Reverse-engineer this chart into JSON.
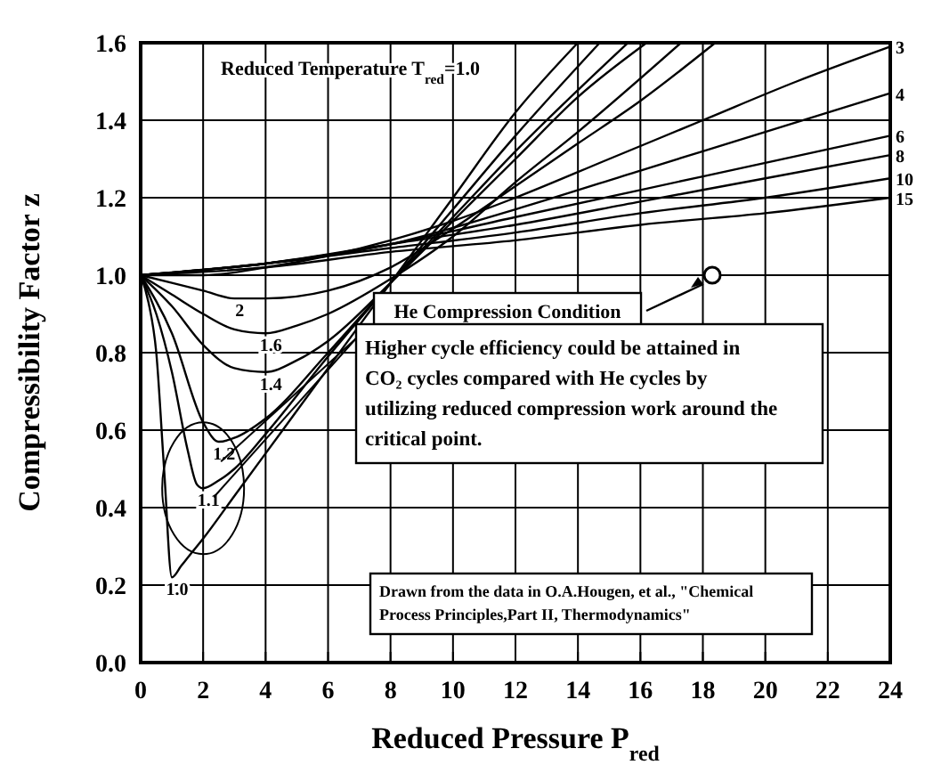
{
  "chart_data": {
    "type": "line",
    "xlabel": "Reduced Pressure  P$_{red}$",
    "ylabel": "Compressibility Factor  z",
    "xlim": [
      0,
      24
    ],
    "xticks": [
      0,
      2,
      4,
      6,
      8,
      10,
      12,
      14,
      16,
      18,
      20,
      22,
      24
    ],
    "ylim": [
      0,
      1.6
    ],
    "yticks": [
      {
        "value": 0,
        "label": "0.0"
      },
      {
        "value": 0.2,
        "label": "0.2"
      },
      {
        "value": 0.4,
        "label": "0.4"
      },
      {
        "value": 0.6,
        "label": "0.6"
      },
      {
        "value": 0.8,
        "label": "0.8"
      },
      {
        "value": 1,
        "label": "1.0"
      },
      {
        "value": 1.2,
        "label": "1.2"
      },
      {
        "value": 1.4,
        "label": "1.4"
      },
      {
        "value": 1.6,
        "label": "1.6"
      }
    ],
    "grid": true,
    "legend": false,
    "marker": "none",
    "line_style": "solid",
    "series": [
      {
        "name": "1.0",
        "color": "#000000",
        "x": [
          0,
          0.25,
          0.5,
          0.75,
          1,
          1.3,
          1.5,
          2,
          3,
          4,
          5,
          6,
          8,
          10,
          12,
          14
        ],
        "values": [
          1,
          0.93,
          0.8,
          0.5,
          0.22,
          0.25,
          0.27,
          0.32,
          0.43,
          0.54,
          0.65,
          0.76,
          0.98,
          1.2,
          1.42,
          1.6
        ]
      },
      {
        "name": "1.1",
        "color": "#000000",
        "x": [
          0,
          0.5,
          1,
          1.5,
          1.8,
          2,
          2.5,
          3,
          4,
          6,
          8,
          10,
          12,
          14.7
        ],
        "values": [
          1,
          0.9,
          0.75,
          0.55,
          0.46,
          0.45,
          0.47,
          0.5,
          0.59,
          0.79,
          0.98,
          1.17,
          1.36,
          1.6
        ]
      },
      {
        "name": "1.2",
        "color": "#000000",
        "x": [
          0,
          1,
          2,
          2.5,
          3,
          4,
          6,
          8,
          10,
          12,
          15.6
        ],
        "values": [
          1,
          0.85,
          0.62,
          0.57,
          0.58,
          0.63,
          0.8,
          0.98,
          1.15,
          1.32,
          1.6
        ]
      },
      {
        "name": "1.4",
        "color": "#000000",
        "x": [
          0,
          1,
          2,
          3,
          4,
          5,
          6,
          8,
          10,
          12,
          14,
          16.2
        ],
        "values": [
          1,
          0.92,
          0.82,
          0.76,
          0.75,
          0.78,
          0.83,
          0.98,
          1.14,
          1.3,
          1.46,
          1.6
        ]
      },
      {
        "name": "1.6",
        "color": "#000000",
        "x": [
          0,
          1,
          2,
          3,
          4,
          5,
          6,
          8,
          10,
          12,
          14,
          17.3
        ],
        "values": [
          1,
          0.95,
          0.9,
          0.86,
          0.85,
          0.87,
          0.9,
          0.99,
          1.1,
          1.24,
          1.37,
          1.6
        ]
      },
      {
        "name": "2",
        "color": "#000000",
        "x": [
          0,
          1,
          2,
          3,
          4,
          6,
          8,
          10,
          12,
          14,
          16,
          18.4
        ],
        "values": [
          1,
          0.98,
          0.96,
          0.94,
          0.94,
          0.96,
          1.02,
          1.12,
          1.23,
          1.34,
          1.45,
          1.6
        ]
      },
      {
        "name": "3",
        "color": "#000000",
        "x": [
          0,
          2,
          4,
          6,
          8,
          10,
          12,
          15,
          18,
          21,
          24
        ],
        "values": [
          1,
          1,
          1.02,
          1.05,
          1.09,
          1.14,
          1.2,
          1.3,
          1.4,
          1.5,
          1.59
        ]
      },
      {
        "name": "4",
        "color": "#000000",
        "x": [
          0,
          4,
          8,
          12,
          16,
          20,
          24
        ],
        "values": [
          1,
          1.03,
          1.08,
          1.17,
          1.27,
          1.37,
          1.47
        ]
      },
      {
        "name": "6",
        "color": "#000000",
        "x": [
          0,
          4,
          8,
          12,
          16,
          20,
          24
        ],
        "values": [
          1,
          1.03,
          1.08,
          1.15,
          1.22,
          1.29,
          1.36
        ]
      },
      {
        "name": "8",
        "color": "#000000",
        "x": [
          0,
          4,
          8,
          12,
          16,
          20,
          24
        ],
        "values": [
          1,
          1.03,
          1.08,
          1.13,
          1.19,
          1.25,
          1.31
        ]
      },
      {
        "name": "10",
        "color": "#000000",
        "x": [
          0,
          4,
          8,
          12,
          16,
          20,
          24
        ],
        "values": [
          1,
          1.03,
          1.07,
          1.11,
          1.16,
          1.2,
          1.25
        ]
      },
      {
        "name": "15",
        "color": "#000000",
        "x": [
          0,
          4,
          8,
          12,
          16,
          20,
          24
        ],
        "values": [
          1,
          1.02,
          1.06,
          1.09,
          1.13,
          1.16,
          1.2
        ]
      },
      {
        "type": "scatter",
        "marker": "circle",
        "color": "#000000",
        "x": [
          18.3
        ],
        "values": [
          1.0
        ]
      }
    ],
    "annotations": [
      "Reduced Temperature T$_{red}$=1.0",
      {
        "text": "He Compression Condition",
        "x": 18.3,
        "y": 1.0
      },
      {
        "text": "Higher cycle efficiency could be attained in CO₂ cycles compared with He cycles by utilizing reduced compression work around the critical point.",
        "x": 2,
        "y": 0.45
      },
      "Drawn from the data in O.A.Hougen, et al., \"Chemical Process Principles,Part II, Thermodynamics\""
    ]
  }
}
